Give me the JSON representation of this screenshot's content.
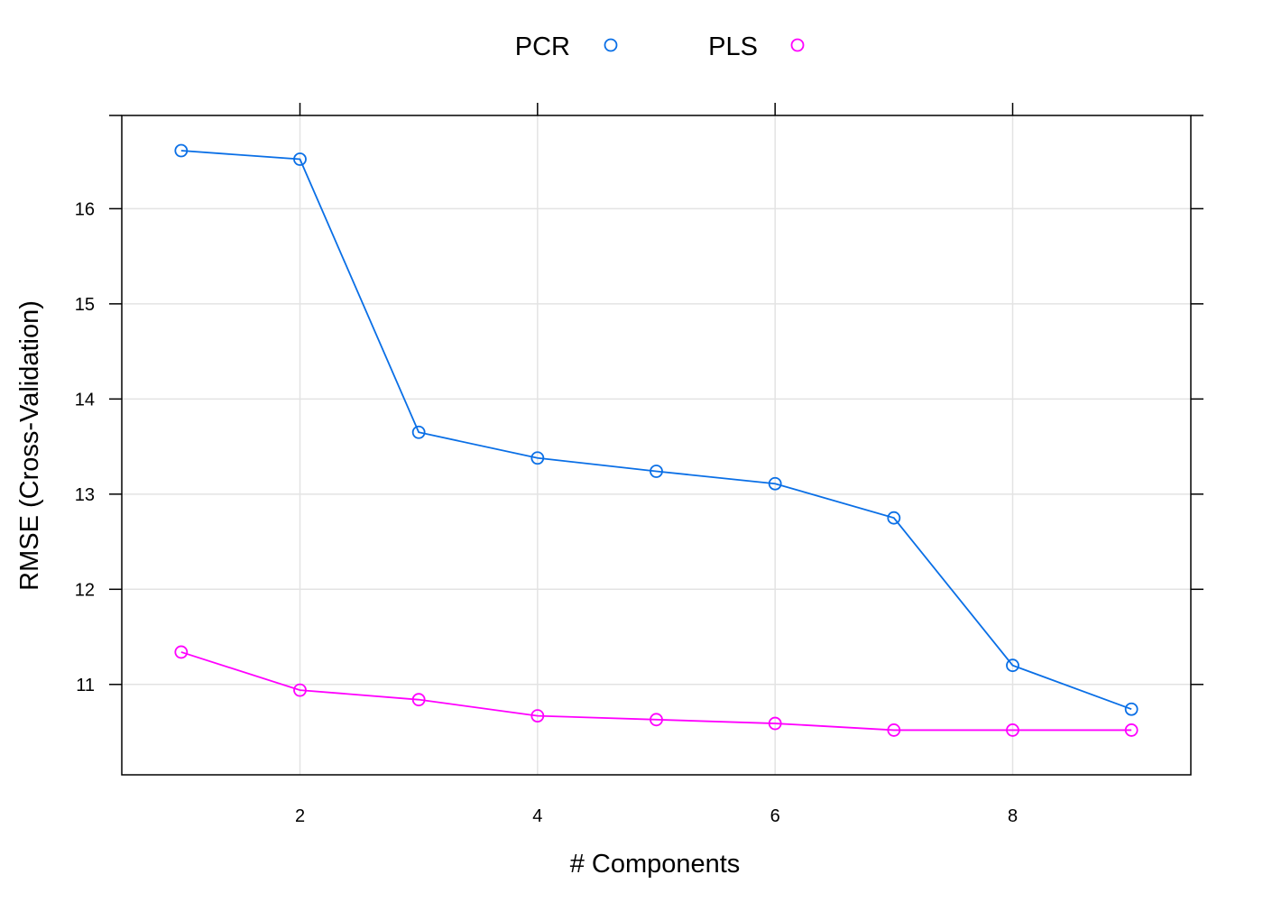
{
  "chart_data": {
    "type": "line",
    "xlabel": "# Components",
    "ylabel": "RMSE (Cross-Validation)",
    "xlim": [
      0.5,
      9.5
    ],
    "ylim": [
      10.05,
      16.98
    ],
    "xticks": [
      2,
      4,
      6,
      8
    ],
    "yticks": [
      11,
      12,
      13,
      14,
      15,
      16
    ],
    "grid": true,
    "legend_position": "top",
    "x": [
      1,
      2,
      3,
      4,
      5,
      6,
      7,
      8,
      9
    ],
    "series": [
      {
        "name": "PCR",
        "color": "#0a6fe6",
        "marker": "open-circle",
        "values": [
          16.61,
          16.52,
          13.65,
          13.38,
          13.24,
          13.11,
          12.75,
          11.2,
          10.74
        ]
      },
      {
        "name": "PLS",
        "color": "#ff00ff",
        "marker": "open-circle",
        "values": [
          11.34,
          10.94,
          10.84,
          10.67,
          10.63,
          10.59,
          10.52,
          10.52,
          10.52
        ]
      }
    ]
  }
}
